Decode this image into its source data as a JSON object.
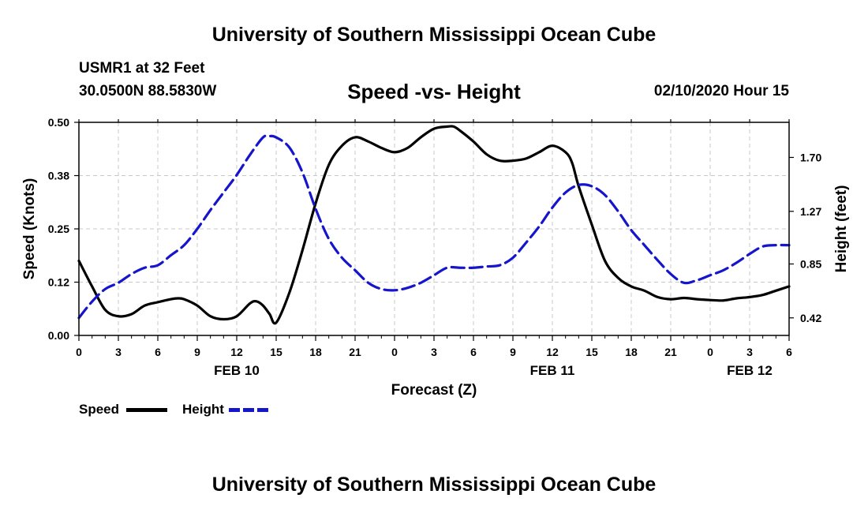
{
  "header": {
    "title": "University of Southern Mississippi Ocean Cube",
    "station": "USMR1 at 32 Feet",
    "coords": "30.0500N 88.5830W",
    "chart_title": "Speed -vs- Height",
    "datetime": "02/10/2020 Hour 15"
  },
  "footer": {
    "title": "University of Southern Mississippi Ocean Cube"
  },
  "legend": {
    "speed_label": "Speed",
    "height_label": "Height"
  },
  "colors": {
    "speed": "#000000",
    "height": "#1515cc",
    "grid": "#c8c8c8"
  },
  "chart_data": {
    "type": "line",
    "title": "Speed -vs- Height",
    "xlabel": "Forecast (Z)",
    "ylabel": "Speed (Knots)",
    "y2label": "Height (feet)",
    "x_range_hours": [
      0,
      54
    ],
    "ylim": [
      0,
      0.5
    ],
    "y2lim": [
      0.28,
      1.98
    ],
    "y_ticks": [
      0,
      0.125,
      0.25,
      0.375,
      0.5
    ],
    "y_tick_labels": [
      "0.00",
      "0.12",
      "0.25",
      "0.38",
      "0.50"
    ],
    "y2_ticks": [
      0.42,
      0.85,
      1.27,
      1.7
    ],
    "y2_tick_labels": [
      "0.42",
      "0.85",
      "1.27",
      "1.70"
    ],
    "x_ticks": [
      0,
      3,
      6,
      9,
      12,
      15,
      18,
      21,
      24,
      27,
      30,
      33,
      36,
      39,
      42,
      45,
      48,
      51,
      54
    ],
    "x_tick_labels": [
      "0",
      "3",
      "6",
      "9",
      "12",
      "15",
      "18",
      "21",
      "0",
      "3",
      "6",
      "9",
      "12",
      "15",
      "18",
      "21",
      "0",
      "3",
      "6"
    ],
    "date_labels": [
      {
        "hour": 12,
        "label": "FEB 10"
      },
      {
        "hour": 36,
        "label": "FEB 11"
      },
      {
        "hour": 51,
        "label": "FEB 12"
      }
    ],
    "grid": true,
    "series": [
      {
        "name": "Speed",
        "axis": "left",
        "style": "solid",
        "x": [
          0,
          1,
          2,
          3,
          4,
          5,
          6,
          7,
          7.5,
          8,
          9,
          10,
          11,
          12,
          13,
          13.5,
          14,
          14.5,
          15,
          16,
          17,
          18,
          19,
          20,
          21,
          22,
          23,
          24,
          25,
          26,
          27,
          28,
          28.5,
          29,
          30,
          31,
          32,
          33,
          34,
          35,
          36,
          37,
          37.5,
          38,
          39,
          40,
          41,
          42,
          43,
          44,
          45,
          46,
          47,
          48,
          49,
          50,
          51,
          52,
          53,
          54
        ],
        "values": [
          0.175,
          0.115,
          0.06,
          0.045,
          0.05,
          0.07,
          0.078,
          0.085,
          0.087,
          0.085,
          0.07,
          0.045,
          0.038,
          0.045,
          0.075,
          0.08,
          0.07,
          0.05,
          0.03,
          0.1,
          0.2,
          0.31,
          0.4,
          0.445,
          0.465,
          0.455,
          0.44,
          0.43,
          0.44,
          0.465,
          0.485,
          0.49,
          0.49,
          0.48,
          0.455,
          0.425,
          0.41,
          0.41,
          0.415,
          0.43,
          0.445,
          0.43,
          0.405,
          0.35,
          0.26,
          0.175,
          0.135,
          0.115,
          0.105,
          0.09,
          0.085,
          0.088,
          0.085,
          0.083,
          0.082,
          0.087,
          0.09,
          0.095,
          0.105,
          0.115
        ]
      },
      {
        "name": "Height",
        "axis": "right",
        "style": "dashed",
        "x": [
          0,
          1,
          2,
          3,
          4,
          5,
          6,
          7,
          8,
          9,
          10,
          11,
          12,
          13,
          14,
          14.5,
          15,
          16,
          17,
          18,
          19,
          20,
          21,
          22,
          23,
          24,
          25,
          26,
          27,
          28,
          29,
          30,
          31,
          32,
          33,
          34,
          35,
          36,
          37,
          38,
          39,
          40,
          41,
          42,
          43,
          44,
          45,
          46,
          47,
          48,
          49,
          50,
          51,
          52,
          53,
          54
        ],
        "values": [
          0.42,
          0.55,
          0.65,
          0.7,
          0.77,
          0.82,
          0.84,
          0.92,
          1.0,
          1.13,
          1.28,
          1.42,
          1.56,
          1.72,
          1.86,
          1.87,
          1.86,
          1.78,
          1.58,
          1.29,
          1.05,
          0.9,
          0.8,
          0.7,
          0.65,
          0.64,
          0.66,
          0.7,
          0.76,
          0.82,
          0.82,
          0.82,
          0.83,
          0.84,
          0.9,
          1.02,
          1.15,
          1.3,
          1.42,
          1.48,
          1.47,
          1.4,
          1.27,
          1.12,
          1.0,
          0.88,
          0.77,
          0.7,
          0.72,
          0.76,
          0.8,
          0.86,
          0.93,
          0.99,
          1.0,
          1.0
        ]
      }
    ]
  }
}
